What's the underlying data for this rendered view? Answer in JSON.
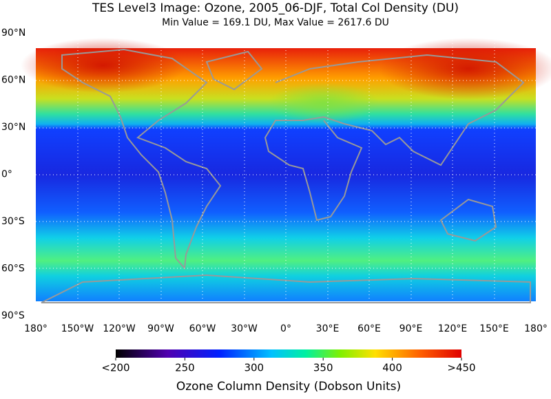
{
  "title": "TES Level3 Image: Ozone, 2005_06-DJF, Total Col Density (DU)",
  "subtitle": "Min Value =  169.1 DU,   Max Value = 2617.6 DU",
  "latitude_labels": [
    "90°N",
    "60°N",
    "30°N",
    "0°",
    "30°S",
    "60°S",
    "90°S"
  ],
  "longitude_labels": [
    "180°",
    "150°W",
    "120°W",
    "90°W",
    "60°W",
    "30°W",
    "0°",
    "30°E",
    "60°E",
    "90°E",
    "120°E",
    "150°E",
    "180°"
  ],
  "colorbar": {
    "range": [
      200,
      450
    ],
    "ticks": [
      {
        "value": 200,
        "label": "<200"
      },
      250,
      300,
      350,
      400,
      {
        "value": 450,
        "label": ">450"
      }
    ],
    "title": "Ozone Column Density (Dobson Units)"
  }
}
